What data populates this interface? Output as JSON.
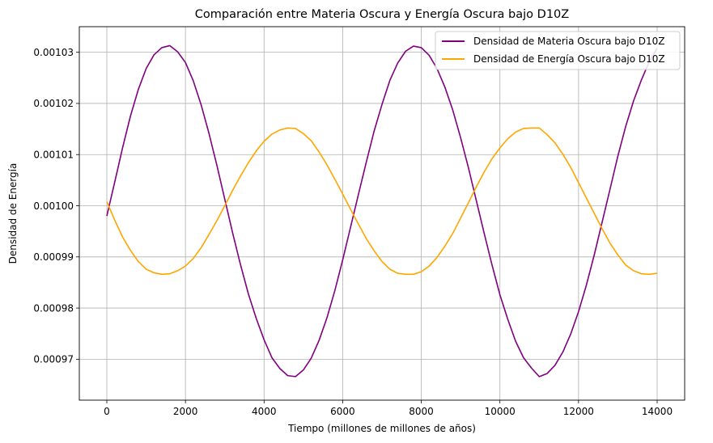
{
  "chart_data": {
    "type": "line",
    "title": "Comparación entre Materia Oscura y Energía Oscura bajo D10Z",
    "xlabel": "Tiempo (millones de millones de años)",
    "ylabel": "Densidad de Energía",
    "xlim": [
      -700,
      14700
    ],
    "ylim": [
      0.000962,
      0.001035
    ],
    "x_ticks": [
      0,
      2000,
      4000,
      6000,
      8000,
      10000,
      12000,
      14000
    ],
    "x_tick_labels": [
      "0",
      "2000",
      "4000",
      "6000",
      "8000",
      "10000",
      "12000",
      "14000"
    ],
    "y_ticks": [
      0.00097,
      0.00098,
      0.00099,
      0.001,
      0.00101,
      0.00102,
      0.00103
    ],
    "y_tick_labels": [
      "0.00097",
      "0.00098",
      "0.00099",
      "0.00100",
      "0.00101",
      "0.00102",
      "0.00103"
    ],
    "grid": true,
    "legend_position": "top-right",
    "series": [
      {
        "name": "Densidad de Materia Oscura bajo D10Z",
        "color": "#800080",
        "x": [
          0,
          200,
          400,
          600,
          800,
          1000,
          1200,
          1400,
          1600,
          1800,
          2000,
          2200,
          2400,
          2600,
          2800,
          3000,
          3200,
          3400,
          3600,
          3800,
          4000,
          4200,
          4400,
          4600,
          4800,
          5000,
          5200,
          5400,
          5600,
          5800,
          6000,
          6200,
          6400,
          6600,
          6800,
          7000,
          7200,
          7400,
          7600,
          7800,
          8000,
          8200,
          8400,
          8600,
          8800,
          9000,
          9200,
          9400,
          9600,
          9800,
          10000,
          10200,
          10400,
          10600,
          10800,
          11000,
          11200,
          11400,
          11600,
          11800,
          12000,
          12200,
          12400,
          12600,
          12800,
          13000,
          13200,
          13400,
          13600,
          13800,
          14000
        ],
        "values": [
          0.000998,
          0.0010046,
          0.0010113,
          0.0010175,
          0.0010227,
          0.0010268,
          0.0010295,
          0.0010309,
          0.0010313,
          0.0010301,
          0.001028,
          0.0010244,
          0.0010197,
          0.0010141,
          0.0010079,
          0.0010013,
          0.0009947,
          0.0009885,
          0.0009828,
          0.000978,
          0.0009738,
          0.0009703,
          0.0009682,
          0.0009668,
          0.0009666,
          0.0009679,
          0.0009702,
          0.0009737,
          0.0009781,
          0.0009834,
          0.0009894,
          0.0009958,
          0.0010022,
          0.0010085,
          0.0010146,
          0.0010198,
          0.0010245,
          0.0010279,
          0.0010302,
          0.0010312,
          0.0010309,
          0.0010294,
          0.0010268,
          0.0010232,
          0.0010187,
          0.0010133,
          0.0010074,
          0.001001,
          0.0009946,
          0.0009884,
          0.0009826,
          0.0009778,
          0.0009735,
          0.0009703,
          0.0009683,
          0.0009666,
          0.0009672,
          0.0009688,
          0.0009714,
          0.0009749,
          0.0009793,
          0.0009845,
          0.0009904,
          0.0009968,
          0.0010032,
          0.0010097,
          0.0010155,
          0.0010205,
          0.0010246,
          0.0010282,
          0.0010308
        ]
      },
      {
        "name": "Densidad de Energía Oscura bajo D10Z",
        "color": "#FFA500",
        "x": [
          0,
          200,
          400,
          600,
          800,
          1000,
          1200,
          1400,
          1600,
          1800,
          2000,
          2200,
          2400,
          2600,
          2800,
          3000,
          3200,
          3400,
          3600,
          3800,
          4000,
          4200,
          4400,
          4600,
          4800,
          5000,
          5200,
          5400,
          5600,
          5800,
          6000,
          6200,
          6400,
          6600,
          6800,
          7000,
          7200,
          7400,
          7600,
          7800,
          8000,
          8200,
          8400,
          8600,
          8800,
          9000,
          9200,
          9400,
          9600,
          9800,
          10000,
          10200,
          10400,
          10600,
          10800,
          11000,
          11200,
          11400,
          11600,
          11800,
          12000,
          12200,
          12400,
          12600,
          12800,
          13000,
          13200,
          13400,
          13600,
          13800,
          14000
        ],
        "values": [
          0.0010008,
          0.0009972,
          0.0009939,
          0.0009913,
          0.0009891,
          0.0009876,
          0.0009869,
          0.0009866,
          0.0009867,
          0.0009873,
          0.0009882,
          0.0009897,
          0.0009918,
          0.0009944,
          0.0009971,
          0.001,
          0.001003,
          0.0010058,
          0.0010084,
          0.0010107,
          0.0010126,
          0.001014,
          0.0010148,
          0.0010152,
          0.0010151,
          0.0010141,
          0.0010127,
          0.0010105,
          0.001008,
          0.0010052,
          0.0010023,
          0.0009993,
          0.0009964,
          0.0009936,
          0.0009912,
          0.0009891,
          0.0009876,
          0.0009868,
          0.0009866,
          0.0009866,
          0.0009871,
          0.0009882,
          0.0009899,
          0.0009921,
          0.0009946,
          0.0009976,
          0.0010006,
          0.0010037,
          0.0010066,
          0.0010092,
          0.0010113,
          0.0010131,
          0.0010144,
          0.0010151,
          0.0010152,
          0.0010152,
          0.0010139,
          0.0010123,
          0.0010101,
          0.0010075,
          0.0010045,
          0.0010015,
          0.0009985,
          0.0009955,
          0.0009927,
          0.0009904,
          0.0009884,
          0.0009873,
          0.0009867,
          0.0009866,
          0.0009868
        ]
      }
    ]
  }
}
